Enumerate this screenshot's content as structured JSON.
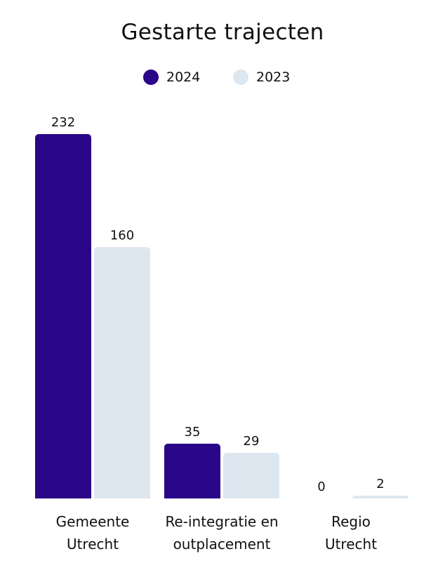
{
  "title": "Gestarte trajecten",
  "legend": [
    {
      "label": "2024",
      "color": "#2a0689"
    },
    {
      "label": "2023",
      "color": "#dde7f0"
    }
  ],
  "chart_data": {
    "type": "bar",
    "title": "Gestarte trajecten",
    "categories": [
      "Gemeente Utrecht",
      "Re-integratie en outplacement",
      "Regio Utrecht"
    ],
    "category_lines": [
      [
        "Gemeente",
        "Utrecht"
      ],
      [
        "Re-integratie en",
        "outplacement"
      ],
      [
        "Regio",
        "Utrecht"
      ]
    ],
    "series": [
      {
        "name": "2024",
        "color": "#2a0689",
        "values": [
          232,
          35,
          0
        ]
      },
      {
        "name": "2023",
        "color": "#dde7f0",
        "values": [
          160,
          29,
          2
        ]
      }
    ],
    "xlabel": "",
    "ylabel": "",
    "ylim": [
      0,
      232
    ],
    "grid": false,
    "legend_position": "top",
    "data_labels": true
  }
}
